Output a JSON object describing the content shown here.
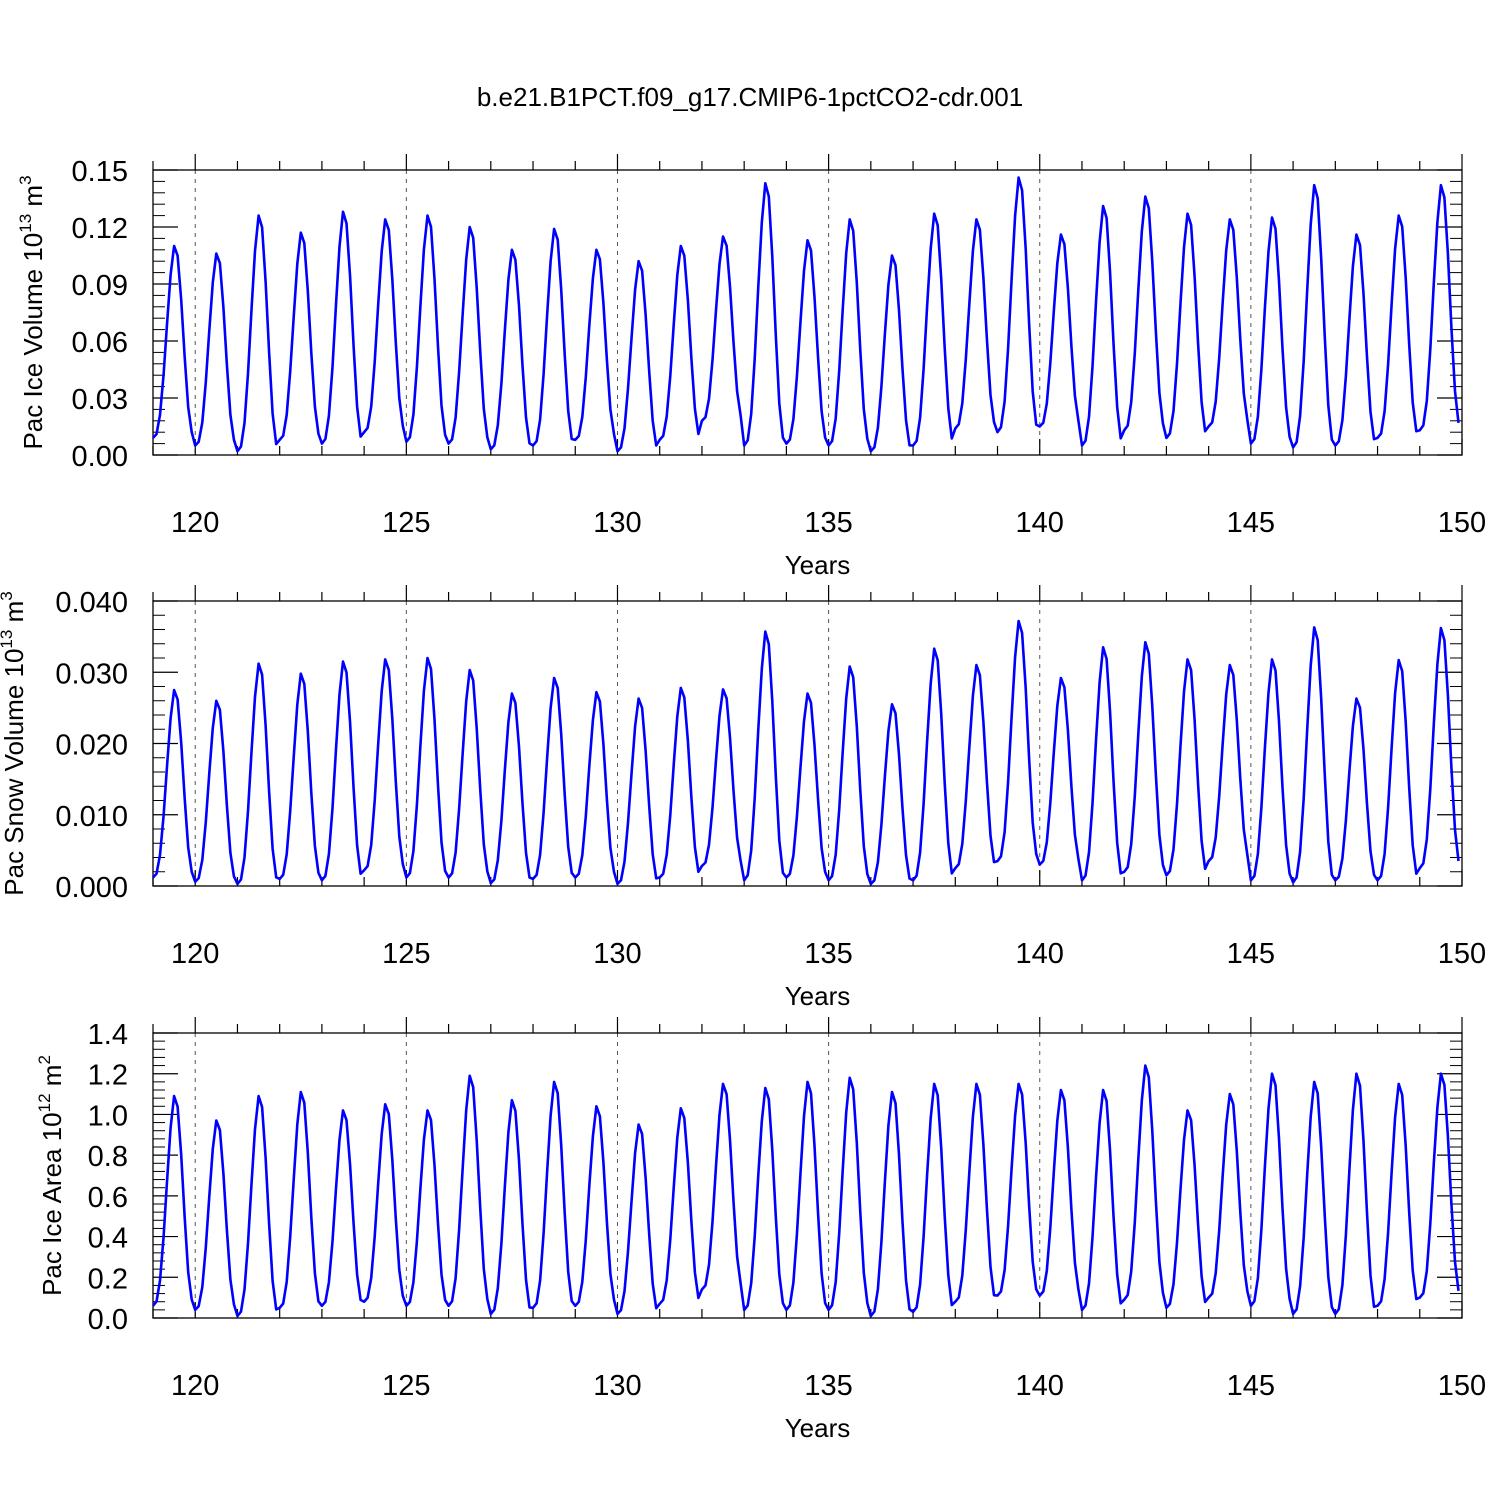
{
  "title": "b.e21.B1PCT.f09_g17.CMIP6-1pctCO2-cdr.001",
  "chart_data": [
    {
      "type": "line",
      "ylabel_main": "Pac Ice Volume 10",
      "ylabel_exp": "13",
      "ylabel_unit": " m",
      "ylabel_unit_exp": "3",
      "xlabel": "Years",
      "xlim": [
        119,
        150
      ],
      "ylim": [
        0,
        0.15
      ],
      "xticks": [
        120,
        125,
        130,
        135,
        140,
        145,
        150
      ],
      "yticks": [
        0,
        0.03,
        0.06,
        0.09,
        0.12,
        0.15
      ],
      "ytick_labels": [
        "0.00",
        "0.03",
        "0.06",
        "0.09",
        "0.12",
        "0.15"
      ],
      "grid": "dashed vertical lines at major x ticks",
      "color": "#0000ff",
      "seasonal_cycle": {
        "min": [
          0.009,
          0.005,
          0.002,
          0.008,
          0.006,
          0.012,
          0.007,
          0.006,
          0.003,
          0.005,
          0.008,
          0.002,
          0.008,
          0.018,
          0.005,
          0.006,
          0.005,
          0.002,
          0.005,
          0.014,
          0.012,
          0.015,
          0.005,
          0.013,
          0.009,
          0.015,
          0.006,
          0.004,
          0.005,
          0.009,
          0.013
        ],
        "max": [
          0.11,
          0.106,
          0.126,
          0.117,
          0.128,
          0.124,
          0.126,
          0.12,
          0.108,
          0.119,
          0.108,
          0.102,
          0.11,
          0.115,
          0.143,
          0.113,
          0.124,
          0.105,
          0.127,
          0.124,
          0.146,
          0.116,
          0.131,
          0.136,
          0.127,
          0.124,
          0.125,
          0.142,
          0.116,
          0.126,
          0.142
        ]
      }
    },
    {
      "type": "line",
      "ylabel_main": "Pac Snow Volume 10",
      "ylabel_exp": "13",
      "ylabel_unit": " m",
      "ylabel_unit_exp": "3",
      "xlabel": "Years",
      "xlim": [
        119,
        150
      ],
      "ylim": [
        0,
        0.04
      ],
      "xticks": [
        120,
        125,
        130,
        135,
        140,
        145,
        150
      ],
      "yticks": [
        0,
        0.01,
        0.02,
        0.03,
        0.04
      ],
      "ytick_labels": [
        "0.000",
        "0.010",
        "0.020",
        "0.030",
        "0.040"
      ],
      "grid": "dashed vertical lines at major x ticks",
      "color": "#0000ff",
      "seasonal_cycle": {
        "min": [
          0.0012,
          0.0006,
          0.0003,
          0.001,
          0.0008,
          0.0022,
          0.0012,
          0.0012,
          0.0004,
          0.001,
          0.0012,
          0.0003,
          0.0012,
          0.0028,
          0.0008,
          0.0012,
          0.0008,
          0.0003,
          0.0008,
          0.0025,
          0.0035,
          0.003,
          0.0008,
          0.002,
          0.0015,
          0.0035,
          0.0008,
          0.0005,
          0.0008,
          0.0008,
          0.0025
        ],
        "max": [
          0.0275,
          0.026,
          0.0312,
          0.0298,
          0.0315,
          0.0318,
          0.032,
          0.0303,
          0.027,
          0.0292,
          0.0272,
          0.0263,
          0.0278,
          0.0276,
          0.0357,
          0.027,
          0.0308,
          0.0255,
          0.0333,
          0.031,
          0.0372,
          0.0292,
          0.0335,
          0.0342,
          0.0318,
          0.031,
          0.0318,
          0.0363,
          0.0263,
          0.0317,
          0.0362
        ]
      }
    },
    {
      "type": "line",
      "ylabel_main": "Pac Ice Area 10",
      "ylabel_exp": "12",
      "ylabel_unit": " m",
      "ylabel_unit_exp": "2",
      "xlabel": "Years",
      "xlim": [
        119,
        150
      ],
      "ylim": [
        0,
        1.4
      ],
      "xticks": [
        120,
        125,
        130,
        135,
        140,
        145,
        150
      ],
      "yticks": [
        0,
        0.2,
        0.4,
        0.6,
        0.8,
        1.0,
        1.2,
        1.4
      ],
      "ytick_labels": [
        "0.0",
        "0.2",
        "0.4",
        "0.6",
        "0.8",
        "1.0",
        "1.2",
        "1.4"
      ],
      "grid": "dashed vertical lines at major x ticks",
      "color": "#0000ff",
      "seasonal_cycle": {
        "min": [
          0.06,
          0.04,
          0.01,
          0.05,
          0.06,
          0.08,
          0.06,
          0.06,
          0.02,
          0.05,
          0.06,
          0.02,
          0.07,
          0.14,
          0.04,
          0.04,
          0.04,
          0.01,
          0.03,
          0.08,
          0.11,
          0.11,
          0.04,
          0.09,
          0.05,
          0.1,
          0.06,
          0.02,
          0.02,
          0.06,
          0.1
        ],
        "max": [
          1.09,
          0.97,
          1.09,
          1.11,
          1.02,
          1.05,
          1.02,
          1.19,
          1.07,
          1.16,
          1.04,
          0.95,
          1.03,
          1.15,
          1.13,
          1.16,
          1.18,
          1.11,
          1.15,
          1.15,
          1.15,
          1.12,
          1.12,
          1.24,
          1.02,
          1.1,
          1.2,
          1.16,
          1.2,
          1.15,
          1.2
        ]
      }
    }
  ]
}
